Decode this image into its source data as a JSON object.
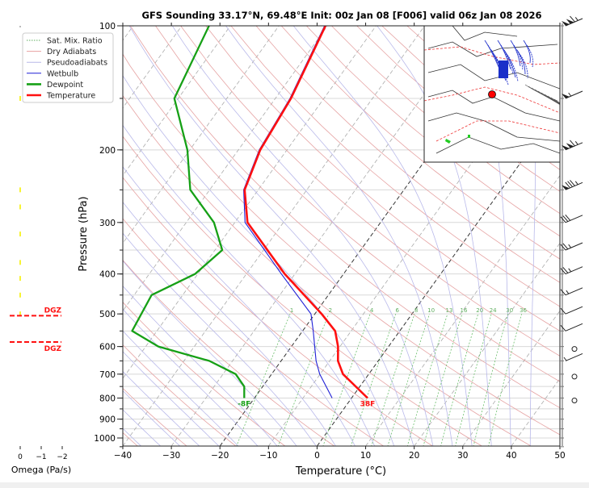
{
  "chart_data": {
    "type": "line",
    "subtype": "skew-T log-P sounding",
    "title": "GFS Sounding 33.17°N, 69.48°E Init: 00z Jan 08 [F006] valid 06z Jan 08 2026",
    "xlabel": "Temperature (°C)",
    "ylabel": "Pressure (hPa)",
    "xlim": [
      -40,
      50
    ],
    "ylim": [
      1050,
      100
    ],
    "yscale": "log",
    "x_ticks": [
      "−40",
      "−30",
      "−20",
      "−10",
      "0",
      "10",
      "20",
      "30",
      "40",
      "50"
    ],
    "x_tick_values": [
      -40,
      -30,
      -20,
      -10,
      0,
      10,
      20,
      30,
      40,
      50
    ],
    "y_ticks": [
      "100",
      "200",
      "300",
      "400",
      "500",
      "600",
      "700",
      "800",
      "900",
      "1000"
    ],
    "y_tick_values": [
      100,
      200,
      300,
      400,
      500,
      600,
      700,
      800,
      900,
      1000
    ],
    "grid": true,
    "legend_position": "upper-left",
    "legend": [
      {
        "label": "Sat. Mix. Ratio",
        "color": "#5fae5f",
        "style": "dotted"
      },
      {
        "label": "Dry Adiabats",
        "color": "#e8a0a0",
        "style": "solid"
      },
      {
        "label": "Pseudoadiabats",
        "color": "#b8b8e8",
        "style": "solid"
      },
      {
        "label": "Wetbulb",
        "color": "#1f1fd6",
        "style": "solid"
      },
      {
        "label": "Dewpoint",
        "color": "#16a016",
        "style": "solid"
      },
      {
        "label": "Temperature",
        "color": "#ff1010",
        "style": "solid"
      }
    ],
    "series": [
      {
        "name": "Temperature",
        "color": "#ff1010",
        "pressure": [
          100,
          150,
          200,
          250,
          300,
          400,
          500,
          550,
          600,
          650,
          700,
          800
        ],
        "values": [
          -60.4,
          -56.8,
          -55.5,
          -52.8,
          -47.4,
          -32.1,
          -18.6,
          -13.3,
          -10.4,
          -8.3,
          -5.3,
          3.3
        ]
      },
      {
        "name": "Wetbulb",
        "color": "#1f1fd6",
        "pressure": [
          100,
          150,
          200,
          250,
          300,
          400,
          500,
          550,
          600,
          650,
          700,
          800
        ],
        "values": [
          -60.6,
          -57.0,
          -55.7,
          -53.0,
          -47.9,
          -32.8,
          -20.8,
          -17.8,
          -15.2,
          -12.8,
          -10.1,
          -4.0
        ]
      },
      {
        "name": "Dewpoint",
        "color": "#16a016",
        "pressure": [
          100,
          150,
          200,
          250,
          300,
          350,
          400,
          450,
          550,
          600,
          650,
          700,
          750,
          800
        ],
        "values": [
          -84.4,
          -80.8,
          -70.5,
          -64.0,
          -54.3,
          -48.5,
          -50.6,
          -56.4,
          -55.1,
          -47.4,
          -34.8,
          -27.4,
          -23.8,
          -22.1
        ]
      }
    ],
    "surface_labels": {
      "temperature": "38F",
      "dewpoint": "-8F"
    },
    "mixing_ratio_labels": [
      "1",
      "2",
      "4",
      "6",
      "8",
      "10",
      "13",
      "16",
      "20",
      "24",
      "30",
      "36"
    ],
    "mixing_ratio_label_pressure": 500,
    "wind_barbs": [
      {
        "pressure": 100,
        "speed_kt": 115
      },
      {
        "pressure": 150,
        "speed_kt": 55
      },
      {
        "pressure": 200,
        "speed_kt": 115
      },
      {
        "pressure": 250,
        "speed_kt": 85
      },
      {
        "pressure": 300,
        "speed_kt": 30
      },
      {
        "pressure": 350,
        "speed_kt": 25
      },
      {
        "pressure": 400,
        "speed_kt": 25
      },
      {
        "pressure": 450,
        "speed_kt": 15
      },
      {
        "pressure": 500,
        "speed_kt": 10
      },
      {
        "pressure": 550,
        "speed_kt": 10
      },
      {
        "pressure": 600,
        "speed_kt": 0
      },
      {
        "pressure": 650,
        "speed_kt": 5
      },
      {
        "pressure": 700,
        "speed_kt": 0
      },
      {
        "pressure": 800,
        "speed_kt": 0
      }
    ],
    "dgz": {
      "label": "DGZ",
      "top_pressure": 505,
      "bottom_pressure": 585,
      "color": "#ff1010"
    },
    "omega": {
      "xlabel": "Omega (Pa/s)",
      "x_ticks": [
        "0",
        "−1",
        "−2"
      ],
      "x_tick_values": [
        0,
        -1,
        -2
      ],
      "pressure": [
        150,
        250,
        275,
        320,
        375,
        410,
        450,
        500
      ],
      "values": [
        0.0,
        0.0,
        0.0,
        0.0,
        0.0,
        0.0,
        0.0,
        0.0
      ],
      "color": "#f5f000"
    },
    "inset_map": {
      "marker_color": "#ff0000",
      "contour_labels": [
        "1022",
        "1024",
        "1026",
        "1028",
        "1030",
        "1032",
        "1036",
        "1040",
        "546",
        "552",
        "558"
      ]
    }
  }
}
